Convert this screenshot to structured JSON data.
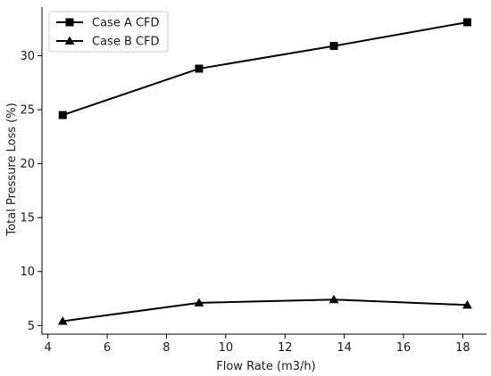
{
  "chart_data": {
    "type": "line",
    "xlabel": "Flow Rate (m3/h)",
    "ylabel": "Total Pressure Loss (%)",
    "xlim": [
      3.8,
      18.8
    ],
    "ylim": [
      4.2,
      34.5
    ],
    "xticks": [
      4,
      6,
      8,
      10,
      12,
      14,
      16,
      18
    ],
    "yticks": [
      5,
      10,
      15,
      20,
      25,
      30
    ],
    "grid": false,
    "legend_position": "top-left",
    "colors": {
      "line": "#000000"
    },
    "series": [
      {
        "name": "Case A CFD",
        "marker": "square",
        "x": [
          4.5,
          9.1,
          13.65,
          18.15
        ],
        "y": [
          24.5,
          28.8,
          30.9,
          33.1
        ]
      },
      {
        "name": "Case B CFD",
        "marker": "triangle",
        "x": [
          4.5,
          9.1,
          13.65,
          18.15
        ],
        "y": [
          5.4,
          7.1,
          7.4,
          6.9
        ]
      }
    ]
  }
}
